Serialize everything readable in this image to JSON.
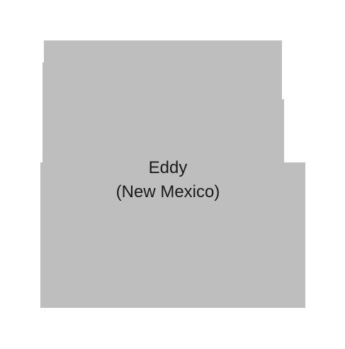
{
  "map": {
    "county_name": "Eddy",
    "state_label": "(New Mexico)",
    "fill_color": "#bebebe",
    "background_color": "#ffffff"
  }
}
